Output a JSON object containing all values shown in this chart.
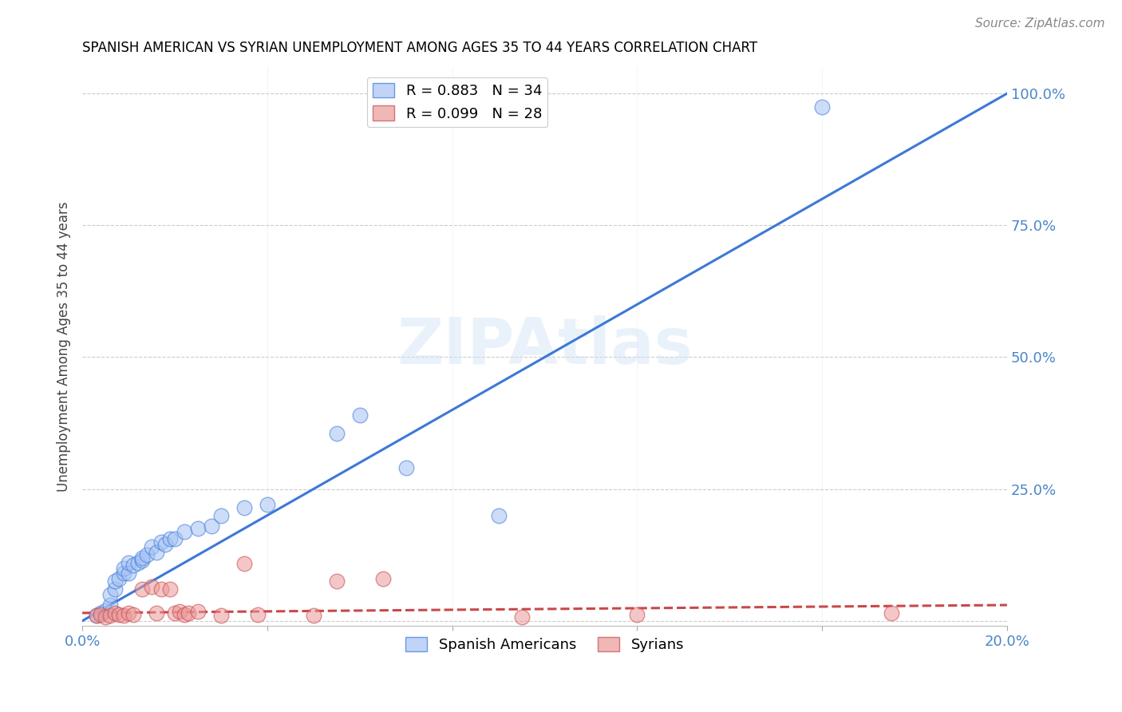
{
  "title": "SPANISH AMERICAN VS SYRIAN UNEMPLOYMENT AMONG AGES 35 TO 44 YEARS CORRELATION CHART",
  "source": "Source: ZipAtlas.com",
  "ylabel": "Unemployment Among Ages 35 to 44 years",
  "xlim": [
    0,
    0.2
  ],
  "ylim": [
    -0.01,
    1.05
  ],
  "xticks": [
    0.0,
    0.04,
    0.08,
    0.12,
    0.16,
    0.2
  ],
  "xticklabels": [
    "0.0%",
    "",
    "",
    "",
    "",
    "20.0%"
  ],
  "yticks": [
    0.0,
    0.25,
    0.5,
    0.75,
    1.0
  ],
  "yticklabels": [
    "",
    "25.0%",
    "50.0%",
    "75.0%",
    "100.0%"
  ],
  "blue_color": "#a4c2f4",
  "pink_color": "#ea9999",
  "blue_line_color": "#3c78d8",
  "pink_line_color": "#c9484a",
  "grid_color": "#cccccc",
  "blue_scatter_x": [
    0.003,
    0.004,
    0.005,
    0.006,
    0.006,
    0.007,
    0.007,
    0.008,
    0.009,
    0.009,
    0.01,
    0.01,
    0.011,
    0.012,
    0.013,
    0.013,
    0.014,
    0.015,
    0.016,
    0.017,
    0.018,
    0.019,
    0.02,
    0.022,
    0.025,
    0.028,
    0.03,
    0.035,
    0.04,
    0.055,
    0.06,
    0.07,
    0.09,
    0.16
  ],
  "blue_scatter_y": [
    0.01,
    0.015,
    0.02,
    0.03,
    0.05,
    0.06,
    0.075,
    0.08,
    0.09,
    0.1,
    0.09,
    0.11,
    0.105,
    0.11,
    0.115,
    0.12,
    0.125,
    0.14,
    0.13,
    0.15,
    0.145,
    0.155,
    0.155,
    0.17,
    0.175,
    0.18,
    0.2,
    0.215,
    0.22,
    0.355,
    0.39,
    0.29,
    0.2,
    0.975
  ],
  "pink_scatter_x": [
    0.003,
    0.004,
    0.005,
    0.006,
    0.007,
    0.008,
    0.009,
    0.01,
    0.011,
    0.013,
    0.015,
    0.016,
    0.017,
    0.019,
    0.02,
    0.021,
    0.022,
    0.023,
    0.025,
    0.03,
    0.035,
    0.038,
    0.05,
    0.055,
    0.065,
    0.095,
    0.12,
    0.175
  ],
  "pink_scatter_y": [
    0.01,
    0.012,
    0.008,
    0.01,
    0.015,
    0.012,
    0.01,
    0.015,
    0.012,
    0.06,
    0.065,
    0.015,
    0.06,
    0.06,
    0.015,
    0.018,
    0.012,
    0.015,
    0.018,
    0.01,
    0.108,
    0.012,
    0.01,
    0.075,
    0.08,
    0.008,
    0.012,
    0.015
  ],
  "blue_line_x": [
    0.0,
    0.2
  ],
  "blue_line_y": [
    0.0,
    1.0
  ],
  "pink_line_x": [
    0.0,
    0.2
  ],
  "pink_line_y": [
    0.015,
    0.03
  ],
  "background_color": "#ffffff",
  "title_color": "#000000",
  "tick_color": "#4a86c8",
  "legend_label_blue": "R = 0.883   N = 34",
  "legend_label_pink": "R = 0.099   N = 28",
  "legend_labels": [
    "Spanish Americans",
    "Syrians"
  ]
}
